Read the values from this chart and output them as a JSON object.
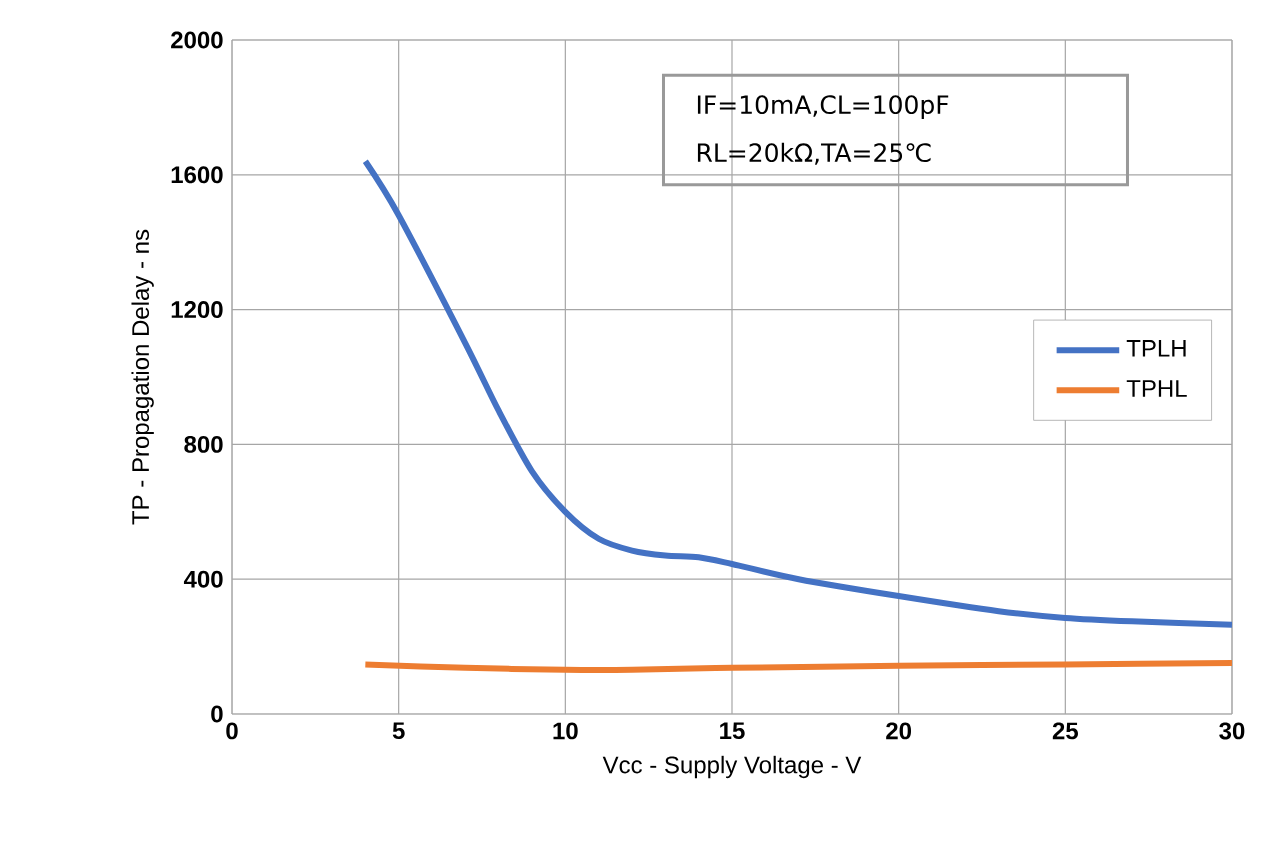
{
  "chart_data": {
    "type": "line",
    "xlabel": "Vcc - Supply Voltage - V",
    "ylabel": "TP - Propagation Delay - ns",
    "xlim": [
      0,
      30
    ],
    "xticks": [
      0,
      5,
      10,
      15,
      20,
      25,
      30
    ],
    "ylim": [
      0,
      2000
    ],
    "yticks": [
      0,
      400,
      800,
      1200,
      1600,
      2000
    ],
    "grid": true,
    "legend": "right",
    "marker": "none",
    "line_style": "solid",
    "annotations": [
      "IF=10mA,CL=100pF",
      "RL=20kΩ,TA=25℃"
    ],
    "series": [
      {
        "name": "TPLH",
        "color": "#4472c4",
        "x": [
          4,
          5,
          7,
          8,
          9,
          10,
          11,
          12,
          13,
          14,
          15,
          17,
          20,
          23,
          25,
          27,
          30
        ],
        "values": [
          1640,
          1480,
          1100,
          900,
          720,
          600,
          520,
          485,
          470,
          465,
          445,
          400,
          350,
          305,
          285,
          275,
          265
        ]
      },
      {
        "name": "TPHL",
        "color": "#ed7d31",
        "x": [
          4,
          7,
          10,
          12,
          15,
          20,
          25,
          30
        ],
        "values": [
          147,
          137,
          131,
          131,
          137,
          143,
          147,
          151
        ]
      }
    ]
  }
}
